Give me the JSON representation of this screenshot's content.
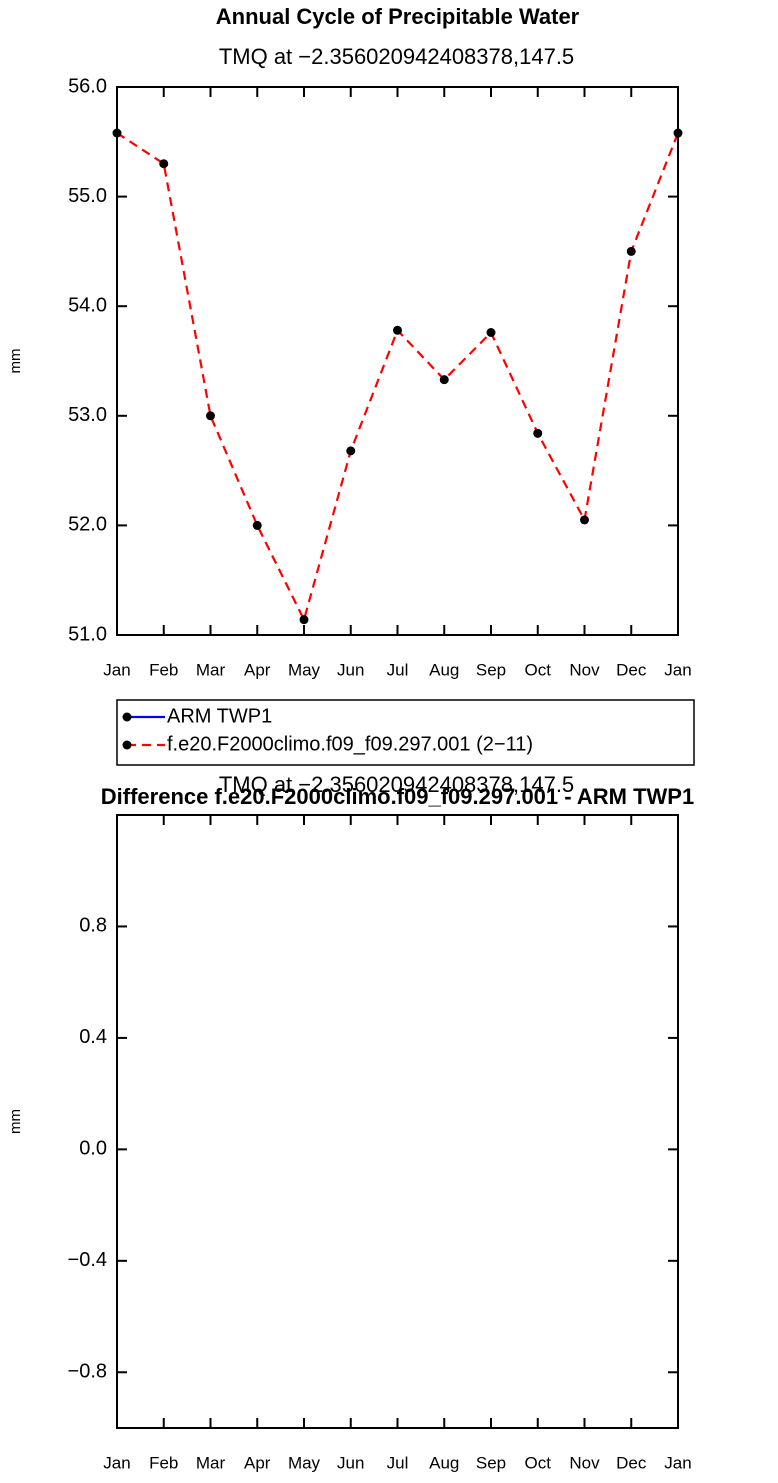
{
  "chart_data": [
    {
      "type": "line",
      "title": "Annual Cycle of Precipitable Water",
      "subtitle": "TMQ at −2.356020942408378,147.5",
      "ylabel": "mm",
      "categories": [
        "Jan",
        "Feb",
        "Mar",
        "Apr",
        "May",
        "Jun",
        "Jul",
        "Aug",
        "Sep",
        "Oct",
        "Nov",
        "Dec",
        "Jan"
      ],
      "series": [
        {
          "name": "ARM TWP1",
          "color": "#0000ff",
          "line_style": "solid",
          "values": [
            null,
            null,
            null,
            null,
            null,
            null,
            null,
            null,
            null,
            null,
            null,
            null,
            null
          ]
        },
        {
          "name": "f.e20.F2000climo.f09_f09.297.001 (2−11)",
          "color": "#ff0000",
          "line_style": "dashed",
          "values": [
            55.58,
            55.3,
            53.0,
            52.0,
            51.14,
            52.68,
            53.78,
            53.33,
            53.76,
            52.84,
            52.05,
            54.5,
            55.58
          ]
        }
      ],
      "ylim": [
        51.0,
        56.0
      ],
      "yticks": [
        {
          "value": 51,
          "label": "51.0"
        },
        {
          "value": 52,
          "label": "52.0"
        },
        {
          "value": 53,
          "label": "53.0"
        },
        {
          "value": 54,
          "label": "54.0"
        },
        {
          "value": 55,
          "label": "55.0"
        },
        {
          "value": 56,
          "label": "56.0"
        }
      ]
    },
    {
      "type": "line",
      "title": "Difference f.e20.F2000climo.f09_f09.297.001 - ARM TWP1",
      "subtitle": "TMQ at −2.356020942408378,147.5",
      "ylabel": "mm",
      "categories": [
        "Jan",
        "Feb",
        "Mar",
        "Apr",
        "May",
        "Jun",
        "Jul",
        "Aug",
        "Sep",
        "Oct",
        "Nov",
        "Dec",
        "Jan"
      ],
      "ylim": [
        -1.0,
        1.2
      ],
      "yticks": [
        {
          "value": -0.8,
          "label": "−0.8"
        },
        {
          "value": -0.4,
          "label": "−0.4"
        },
        {
          "value": 0,
          "label": "0.0"
        },
        0.4,
        0.8
      ]
    }
  ]
}
